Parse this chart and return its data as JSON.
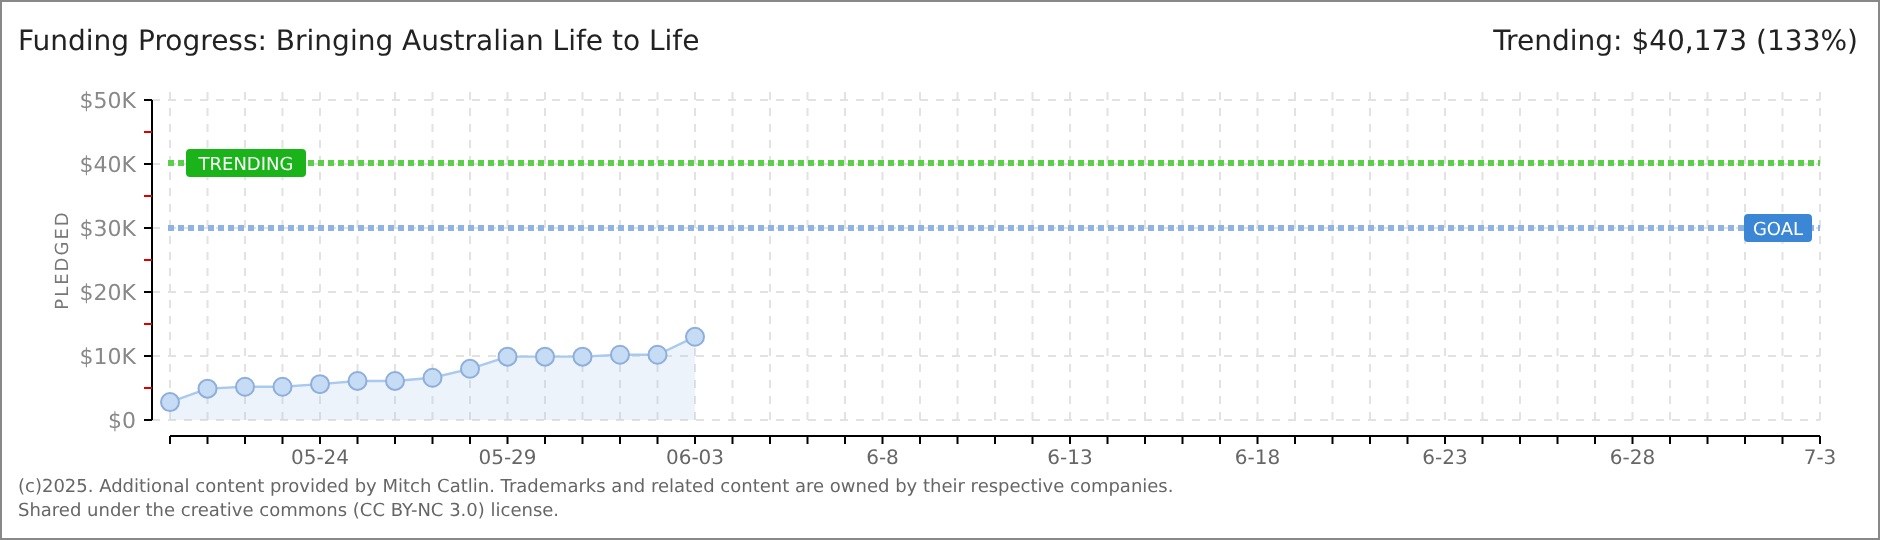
{
  "chart_data": {
    "type": "area",
    "title": "Funding Progress: Bringing Australian Life to Life",
    "ylabel": "PLEDGED",
    "annotations": [
      "Trending: $40,173 (133%)",
      "(c)2025. Additional content provided by Mitch Catlin. Trademarks and related content are owned by their respective companies.",
      "Shared under the creative commons (CC BY-NC 3.0) license."
    ],
    "x": [
      "--05-20",
      "--05-21",
      "--05-22",
      "--05-23",
      "--05-24",
      "--05-25",
      "--05-26",
      "--05-27",
      "--05-28",
      "--05-29",
      "--05-30",
      "--05-31",
      "--06-01",
      "--06-02",
      "--06-03"
    ],
    "series": [
      {
        "color": "#a9c9ee",
        "values": [
          2800,
          4900,
          5200,
          5200,
          5600,
          6100,
          6100,
          6600,
          8000,
          9900,
          9900,
          9900,
          10200,
          10200,
          13000
        ]
      }
    ],
    "xlim": [
      "--05-20",
      "--07-03"
    ],
    "xticks": [
      {
        "value": "--05-20",
        "label": null
      },
      {
        "value": "--05-21",
        "label": null
      },
      {
        "value": "--05-22",
        "label": null
      },
      {
        "value": "--05-23",
        "label": null
      },
      {
        "value": "--05-24",
        "label": "05-24"
      },
      {
        "value": "--05-25",
        "label": null
      },
      {
        "value": "--05-26",
        "label": null
      },
      {
        "value": "--05-27",
        "label": null
      },
      {
        "value": "--05-28",
        "label": null
      },
      {
        "value": "--05-29",
        "label": "05-29"
      },
      {
        "value": "--05-30",
        "label": null
      },
      {
        "value": "--05-31",
        "label": null
      },
      {
        "value": "--06-01",
        "label": null
      },
      {
        "value": "--06-02",
        "label": null
      },
      {
        "value": "--06-03",
        "label": "06-03"
      },
      {
        "value": "--06-04",
        "label": null
      },
      {
        "value": "--06-05",
        "label": null
      },
      {
        "value": "--06-06",
        "label": null
      },
      {
        "value": "--06-07",
        "label": null
      },
      {
        "value": "--06-08",
        "label": "6-8"
      },
      {
        "value": "--06-09",
        "label": null
      },
      {
        "value": "--06-10",
        "label": null
      },
      {
        "value": "--06-11",
        "label": null
      },
      {
        "value": "--06-12",
        "label": null
      },
      {
        "value": "--06-13",
        "label": "6-13"
      },
      {
        "value": "--06-14",
        "label": null
      },
      {
        "value": "--06-15",
        "label": null
      },
      {
        "value": "--06-16",
        "label": null
      },
      {
        "value": "--06-17",
        "label": null
      },
      {
        "value": "--06-18",
        "label": "6-18"
      },
      {
        "value": "--06-19",
        "label": null
      },
      {
        "value": "--06-20",
        "label": null
      },
      {
        "value": "--06-21",
        "label": null
      },
      {
        "value": "--06-22",
        "label": null
      },
      {
        "value": "--06-23",
        "label": "6-23"
      },
      {
        "value": "--06-24",
        "label": null
      },
      {
        "value": "--06-25",
        "label": null
      },
      {
        "value": "--06-26",
        "label": null
      },
      {
        "value": "--06-27",
        "label": null
      },
      {
        "value": "--06-28",
        "label": "6-28"
      },
      {
        "value": "--06-29",
        "label": null
      },
      {
        "value": "--06-30",
        "label": null
      },
      {
        "value": "--07-01",
        "label": null
      },
      {
        "value": "--07-02",
        "label": null
      },
      {
        "value": "--07-03",
        "label": "7-3"
      }
    ],
    "ylim": [
      0,
      50000
    ],
    "yticks": [
      {
        "value": 0,
        "label": "$0"
      },
      {
        "value": 5000,
        "label": null
      },
      {
        "value": 10000,
        "label": "$10K"
      },
      {
        "value": 15000,
        "label": null
      },
      {
        "value": 20000,
        "label": "$20K"
      },
      {
        "value": 25000,
        "label": null
      },
      {
        "value": 30000,
        "label": "$30K"
      },
      {
        "value": 35000,
        "label": null
      },
      {
        "value": 40000,
        "label": "$40K"
      },
      {
        "value": 45000,
        "label": null
      },
      {
        "value": 50000,
        "label": "$50K"
      }
    ],
    "ref_lines": [
      {
        "axis": "y",
        "value": 40173,
        "label": "TRENDING",
        "color": "#5ccf4a",
        "line_style": "dotted"
      },
      {
        "axis": "y",
        "value": 30000,
        "label": "GOAL",
        "color": "#8fb4e3",
        "line_style": "dotted"
      }
    ],
    "grid": true,
    "marker": "circle",
    "line_style": "solid"
  }
}
